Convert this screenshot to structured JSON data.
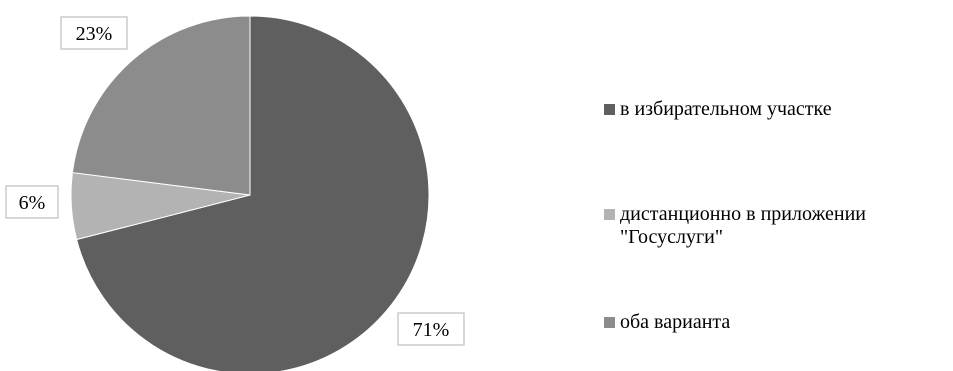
{
  "chart_data": {
    "type": "pie",
    "title": "",
    "categories": [
      "в избирательном участке",
      "дистанционно в приложении\n\"Госуслуги\"",
      "оба варианта"
    ],
    "values": [
      71,
      6,
      23
    ],
    "data_labels": [
      "71%",
      "6%",
      "23%"
    ],
    "colors": [
      "#5f5f5f",
      "#b3b3b3",
      "#8c8c8c"
    ],
    "start_angle_deg": 0,
    "direction": "clockwise",
    "legend_position": "right"
  }
}
